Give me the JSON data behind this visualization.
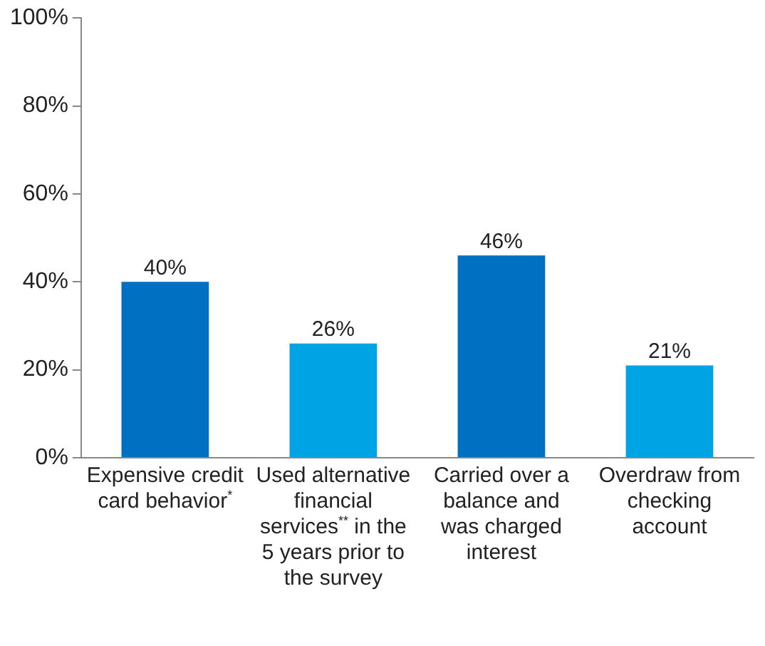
{
  "chart_data": {
    "type": "bar",
    "categories": [
      "Expensive credit card behavior$^{*}$",
      "Used alternative financial services$^{**}$ in the 5 years prior to the survey",
      "Carried over a balance and was charged interest",
      "Overdraw from checking account"
    ],
    "values": [
      40,
      26,
      46,
      21
    ],
    "colors": [
      "#0071c2",
      "#00a4e4",
      "#0071c2",
      "#00a4e4"
    ],
    "ylim": [
      0,
      100
    ],
    "yticks": [
      {
        "value": 0,
        "label": "0%"
      },
      {
        "value": 20,
        "label": "20%"
      },
      {
        "value": 40,
        "label": "40%"
      },
      {
        "value": 60,
        "label": "60%"
      },
      {
        "value": 80,
        "label": "80%"
      },
      {
        "value": 100,
        "label": "100%"
      }
    ],
    "value_labels": [
      "40%",
      "26%",
      "46%",
      "21%"
    ],
    "grid": false,
    "legend": false
  }
}
